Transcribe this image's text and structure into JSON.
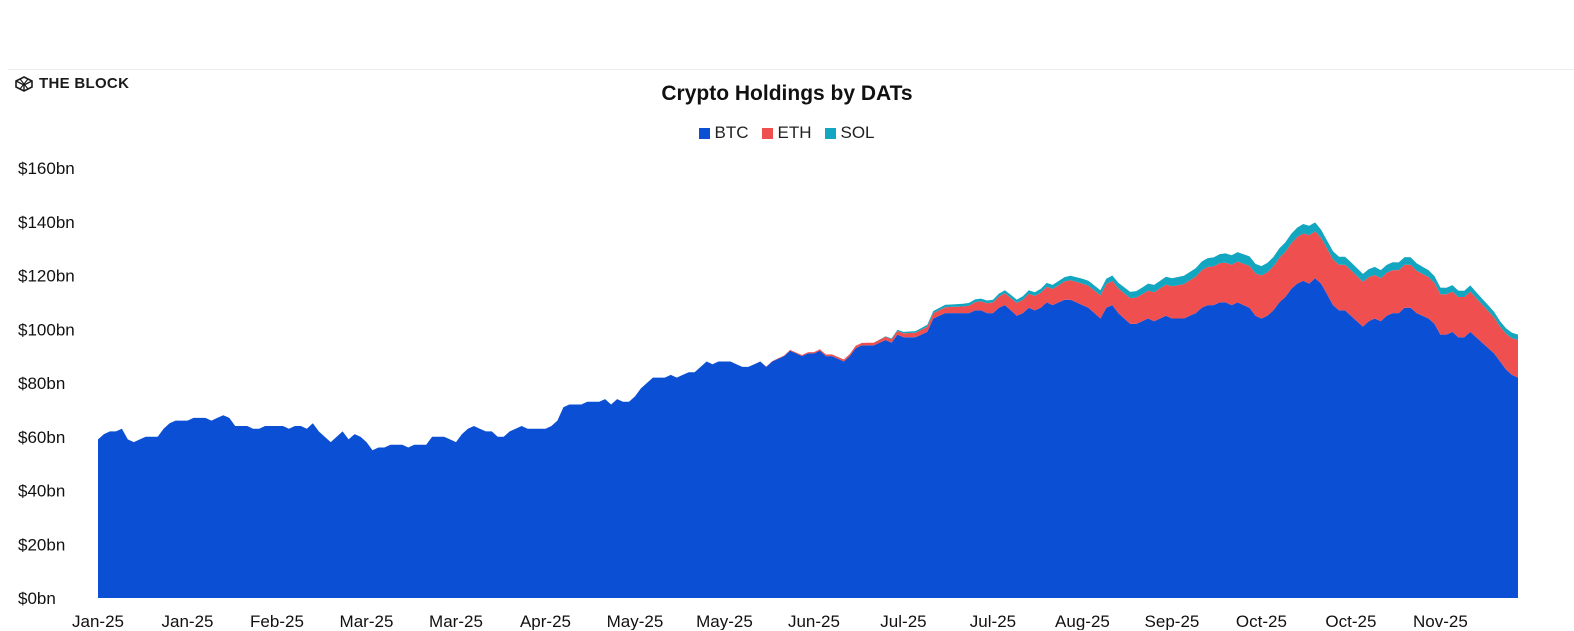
{
  "brand": {
    "name": "THE BLOCK"
  },
  "chart_data": {
    "type": "area",
    "stacked": true,
    "title": "Crypto Holdings by DATs",
    "legend_position": "top-center",
    "grid": false,
    "y_unit_format": "$%sbn",
    "ylim": [
      0,
      160
    ],
    "y_ticks": [
      "$0bn",
      "$20bn",
      "$40bn",
      "$60bn",
      "$80bn",
      "$100bn",
      "$120bn",
      "$140bn",
      "$160bn"
    ],
    "x_ticks": [
      "Jan-25",
      "Jan-25",
      "Feb-25",
      "Mar-25",
      "Mar-25",
      "Apr-25",
      "May-25",
      "May-25",
      "Jun-25",
      "Jul-25",
      "Jul-25",
      "Aug-25",
      "Sep-25",
      "Oct-25",
      "Oct-25",
      "Nov-25"
    ],
    "x_tick_positions": [
      0,
      15,
      30,
      45,
      60,
      75,
      90,
      105,
      120,
      135,
      150,
      165,
      180,
      195,
      210,
      225
    ],
    "x_index_range": [
      0,
      238
    ],
    "colors": {
      "BTC": "#0b50d4",
      "ETH": "#ef4f4f",
      "SOL": "#13a6c0"
    },
    "series": [
      {
        "name": "BTC",
        "points": [
          [
            0,
            59
          ],
          [
            1,
            61
          ],
          [
            2,
            62
          ],
          [
            3,
            62
          ],
          [
            4,
            63
          ],
          [
            5,
            59
          ],
          [
            6,
            58
          ],
          [
            7,
            59
          ],
          [
            8,
            60
          ],
          [
            9,
            60
          ],
          [
            10,
            60
          ],
          [
            11,
            63
          ],
          [
            12,
            65
          ],
          [
            13,
            66
          ],
          [
            14,
            66
          ],
          [
            15,
            66
          ],
          [
            16,
            67
          ],
          [
            17,
            67
          ],
          [
            18,
            67
          ],
          [
            19,
            66
          ],
          [
            20,
            67
          ],
          [
            21,
            68
          ],
          [
            22,
            67
          ],
          [
            23,
            64
          ],
          [
            24,
            64
          ],
          [
            25,
            64
          ],
          [
            26,
            63
          ],
          [
            27,
            63
          ],
          [
            28,
            64
          ],
          [
            29,
            64
          ],
          [
            30,
            64
          ],
          [
            31,
            64
          ],
          [
            32,
            63
          ],
          [
            33,
            64
          ],
          [
            34,
            64
          ],
          [
            35,
            63
          ],
          [
            36,
            65
          ],
          [
            37,
            62
          ],
          [
            38,
            60
          ],
          [
            39,
            58
          ],
          [
            40,
            60
          ],
          [
            41,
            62
          ],
          [
            42,
            59
          ],
          [
            43,
            61
          ],
          [
            44,
            60
          ],
          [
            45,
            58
          ],
          [
            46,
            55
          ],
          [
            47,
            56
          ],
          [
            48,
            56
          ],
          [
            49,
            57
          ],
          [
            50,
            57
          ],
          [
            51,
            57
          ],
          [
            52,
            56
          ],
          [
            53,
            57
          ],
          [
            54,
            57
          ],
          [
            55,
            57
          ],
          [
            56,
            60
          ],
          [
            57,
            60
          ],
          [
            58,
            60
          ],
          [
            59,
            59
          ],
          [
            60,
            58
          ],
          [
            61,
            61
          ],
          [
            62,
            63
          ],
          [
            63,
            64
          ],
          [
            64,
            63
          ],
          [
            65,
            62
          ],
          [
            66,
            62
          ],
          [
            67,
            60
          ],
          [
            68,
            60
          ],
          [
            69,
            62
          ],
          [
            70,
            63
          ],
          [
            71,
            64
          ],
          [
            72,
            63
          ],
          [
            73,
            63
          ],
          [
            74,
            63
          ],
          [
            75,
            63
          ],
          [
            76,
            64
          ],
          [
            77,
            66
          ],
          [
            78,
            71
          ],
          [
            79,
            72
          ],
          [
            80,
            72
          ],
          [
            81,
            72
          ],
          [
            82,
            73
          ],
          [
            83,
            73
          ],
          [
            84,
            73
          ],
          [
            85,
            74
          ],
          [
            86,
            72
          ],
          [
            87,
            74
          ],
          [
            88,
            73
          ],
          [
            89,
            73
          ],
          [
            90,
            75
          ],
          [
            91,
            78
          ],
          [
            92,
            80
          ],
          [
            93,
            82
          ],
          [
            94,
            82
          ],
          [
            95,
            82
          ],
          [
            96,
            83
          ],
          [
            97,
            82
          ],
          [
            98,
            83
          ],
          [
            99,
            84
          ],
          [
            100,
            84
          ],
          [
            101,
            86
          ],
          [
            102,
            88
          ],
          [
            103,
            87
          ],
          [
            104,
            88
          ],
          [
            105,
            88
          ],
          [
            106,
            88
          ],
          [
            107,
            87
          ],
          [
            108,
            86
          ],
          [
            109,
            86
          ],
          [
            110,
            87
          ],
          [
            111,
            88
          ],
          [
            112,
            86
          ],
          [
            113,
            88
          ],
          [
            114,
            89
          ],
          [
            115,
            90
          ],
          [
            116,
            92
          ],
          [
            117,
            91
          ],
          [
            118,
            90
          ],
          [
            119,
            91
          ],
          [
            120,
            91
          ],
          [
            121,
            92
          ],
          [
            122,
            90
          ],
          [
            123,
            90
          ],
          [
            124,
            89
          ],
          [
            125,
            88
          ],
          [
            126,
            90
          ],
          [
            127,
            93
          ],
          [
            128,
            94
          ],
          [
            129,
            94
          ],
          [
            130,
            94
          ],
          [
            131,
            95
          ],
          [
            132,
            96
          ],
          [
            133,
            95
          ],
          [
            134,
            98
          ],
          [
            135,
            97
          ],
          [
            136,
            97
          ],
          [
            137,
            97
          ],
          [
            138,
            98
          ],
          [
            139,
            99
          ],
          [
            140,
            104
          ],
          [
            141,
            105
          ],
          [
            142,
            106
          ],
          [
            143,
            106
          ],
          [
            144,
            106
          ],
          [
            145,
            106
          ],
          [
            146,
            106
          ],
          [
            147,
            107
          ],
          [
            148,
            107
          ],
          [
            149,
            106
          ],
          [
            150,
            106
          ],
          [
            151,
            108
          ],
          [
            152,
            109
          ],
          [
            153,
            107
          ],
          [
            154,
            105
          ],
          [
            155,
            106
          ],
          [
            156,
            108
          ],
          [
            157,
            107
          ],
          [
            158,
            108
          ],
          [
            159,
            110
          ],
          [
            160,
            109
          ],
          [
            161,
            110
          ],
          [
            162,
            111
          ],
          [
            163,
            111
          ],
          [
            164,
            110
          ],
          [
            165,
            109
          ],
          [
            166,
            108
          ],
          [
            167,
            106
          ],
          [
            168,
            104
          ],
          [
            169,
            108
          ],
          [
            170,
            109
          ],
          [
            171,
            106
          ],
          [
            172,
            104
          ],
          [
            173,
            102
          ],
          [
            174,
            102
          ],
          [
            175,
            103
          ],
          [
            176,
            104
          ],
          [
            177,
            103
          ],
          [
            178,
            104
          ],
          [
            179,
            105
          ],
          [
            180,
            104
          ],
          [
            181,
            104
          ],
          [
            182,
            104
          ],
          [
            183,
            105
          ],
          [
            184,
            106
          ],
          [
            185,
            108
          ],
          [
            186,
            109
          ],
          [
            187,
            109
          ],
          [
            188,
            110
          ],
          [
            189,
            110
          ],
          [
            190,
            109
          ],
          [
            191,
            110
          ],
          [
            192,
            109
          ],
          [
            193,
            108
          ],
          [
            194,
            105
          ],
          [
            195,
            104
          ],
          [
            196,
            105
          ],
          [
            197,
            107
          ],
          [
            198,
            110
          ],
          [
            199,
            112
          ],
          [
            200,
            115
          ],
          [
            201,
            117
          ],
          [
            202,
            118
          ],
          [
            203,
            117
          ],
          [
            204,
            119
          ],
          [
            205,
            117
          ],
          [
            206,
            113
          ],
          [
            207,
            109
          ],
          [
            208,
            107
          ],
          [
            209,
            107
          ],
          [
            210,
            105
          ],
          [
            211,
            103
          ],
          [
            212,
            101
          ],
          [
            213,
            103
          ],
          [
            214,
            104
          ],
          [
            215,
            103
          ],
          [
            216,
            105
          ],
          [
            217,
            106
          ],
          [
            218,
            106
          ],
          [
            219,
            108
          ],
          [
            220,
            108
          ],
          [
            221,
            106
          ],
          [
            222,
            105
          ],
          [
            223,
            104
          ],
          [
            224,
            102
          ],
          [
            225,
            98
          ],
          [
            226,
            98
          ],
          [
            227,
            99
          ],
          [
            228,
            97
          ],
          [
            229,
            97
          ],
          [
            230,
            99
          ],
          [
            231,
            97
          ],
          [
            232,
            95
          ],
          [
            233,
            93
          ],
          [
            234,
            91
          ],
          [
            235,
            88
          ],
          [
            236,
            85
          ],
          [
            237,
            83
          ],
          [
            238,
            82
          ]
        ]
      },
      {
        "name": "ETH",
        "points": [
          [
            0,
            0
          ],
          [
            100,
            0
          ],
          [
            110,
            0
          ],
          [
            120,
            0.5
          ],
          [
            130,
            1
          ],
          [
            135,
            1.5
          ],
          [
            140,
            2
          ],
          [
            145,
            2.5
          ],
          [
            150,
            4
          ],
          [
            155,
            5
          ],
          [
            160,
            6
          ],
          [
            165,
            8
          ],
          [
            170,
            9
          ],
          [
            175,
            10
          ],
          [
            180,
            12
          ],
          [
            185,
            14
          ],
          [
            190,
            15
          ],
          [
            195,
            16
          ],
          [
            200,
            17
          ],
          [
            203,
            18
          ],
          [
            205,
            17
          ],
          [
            210,
            17
          ],
          [
            215,
            16
          ],
          [
            220,
            16
          ],
          [
            225,
            15
          ],
          [
            230,
            15
          ],
          [
            235,
            13
          ],
          [
            238,
            14
          ]
        ]
      },
      {
        "name": "SOL",
        "points": [
          [
            0,
            0
          ],
          [
            130,
            0
          ],
          [
            135,
            0.5
          ],
          [
            140,
            0.8
          ],
          [
            145,
            1
          ],
          [
            150,
            1
          ],
          [
            155,
            1.3
          ],
          [
            160,
            1.5
          ],
          [
            165,
            1.8
          ],
          [
            170,
            2
          ],
          [
            175,
            2.5
          ],
          [
            180,
            3
          ],
          [
            185,
            3.2
          ],
          [
            190,
            3.5
          ],
          [
            195,
            3.5
          ],
          [
            200,
            3.5
          ],
          [
            203,
            3.5
          ],
          [
            205,
            3
          ],
          [
            210,
            3
          ],
          [
            215,
            3
          ],
          [
            220,
            2.8
          ],
          [
            225,
            2.5
          ],
          [
            230,
            2.3
          ],
          [
            235,
            2
          ],
          [
            238,
            2
          ]
        ]
      }
    ]
  }
}
